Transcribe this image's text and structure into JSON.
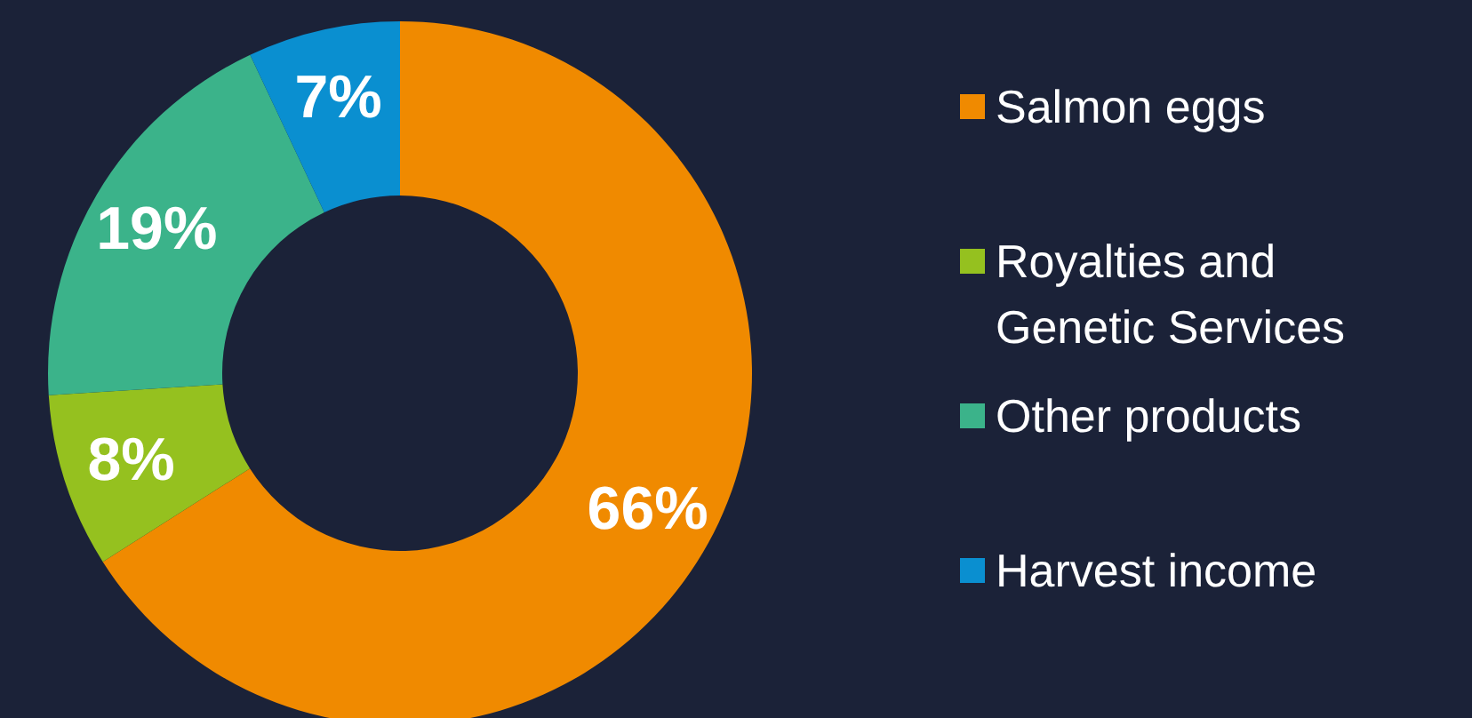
{
  "chart_data": {
    "type": "donut",
    "categories": [
      "Salmon eggs",
      "Royalties and Genetic Services",
      "Other products",
      "Harvest income"
    ],
    "values": [
      66,
      8,
      19,
      7
    ],
    "value_labels": [
      "66%",
      "8%",
      "19%",
      "7%"
    ],
    "colors": [
      "#f08a00",
      "#95c11f",
      "#3bb38a",
      "#0a8fd0"
    ],
    "legend": "right"
  }
}
